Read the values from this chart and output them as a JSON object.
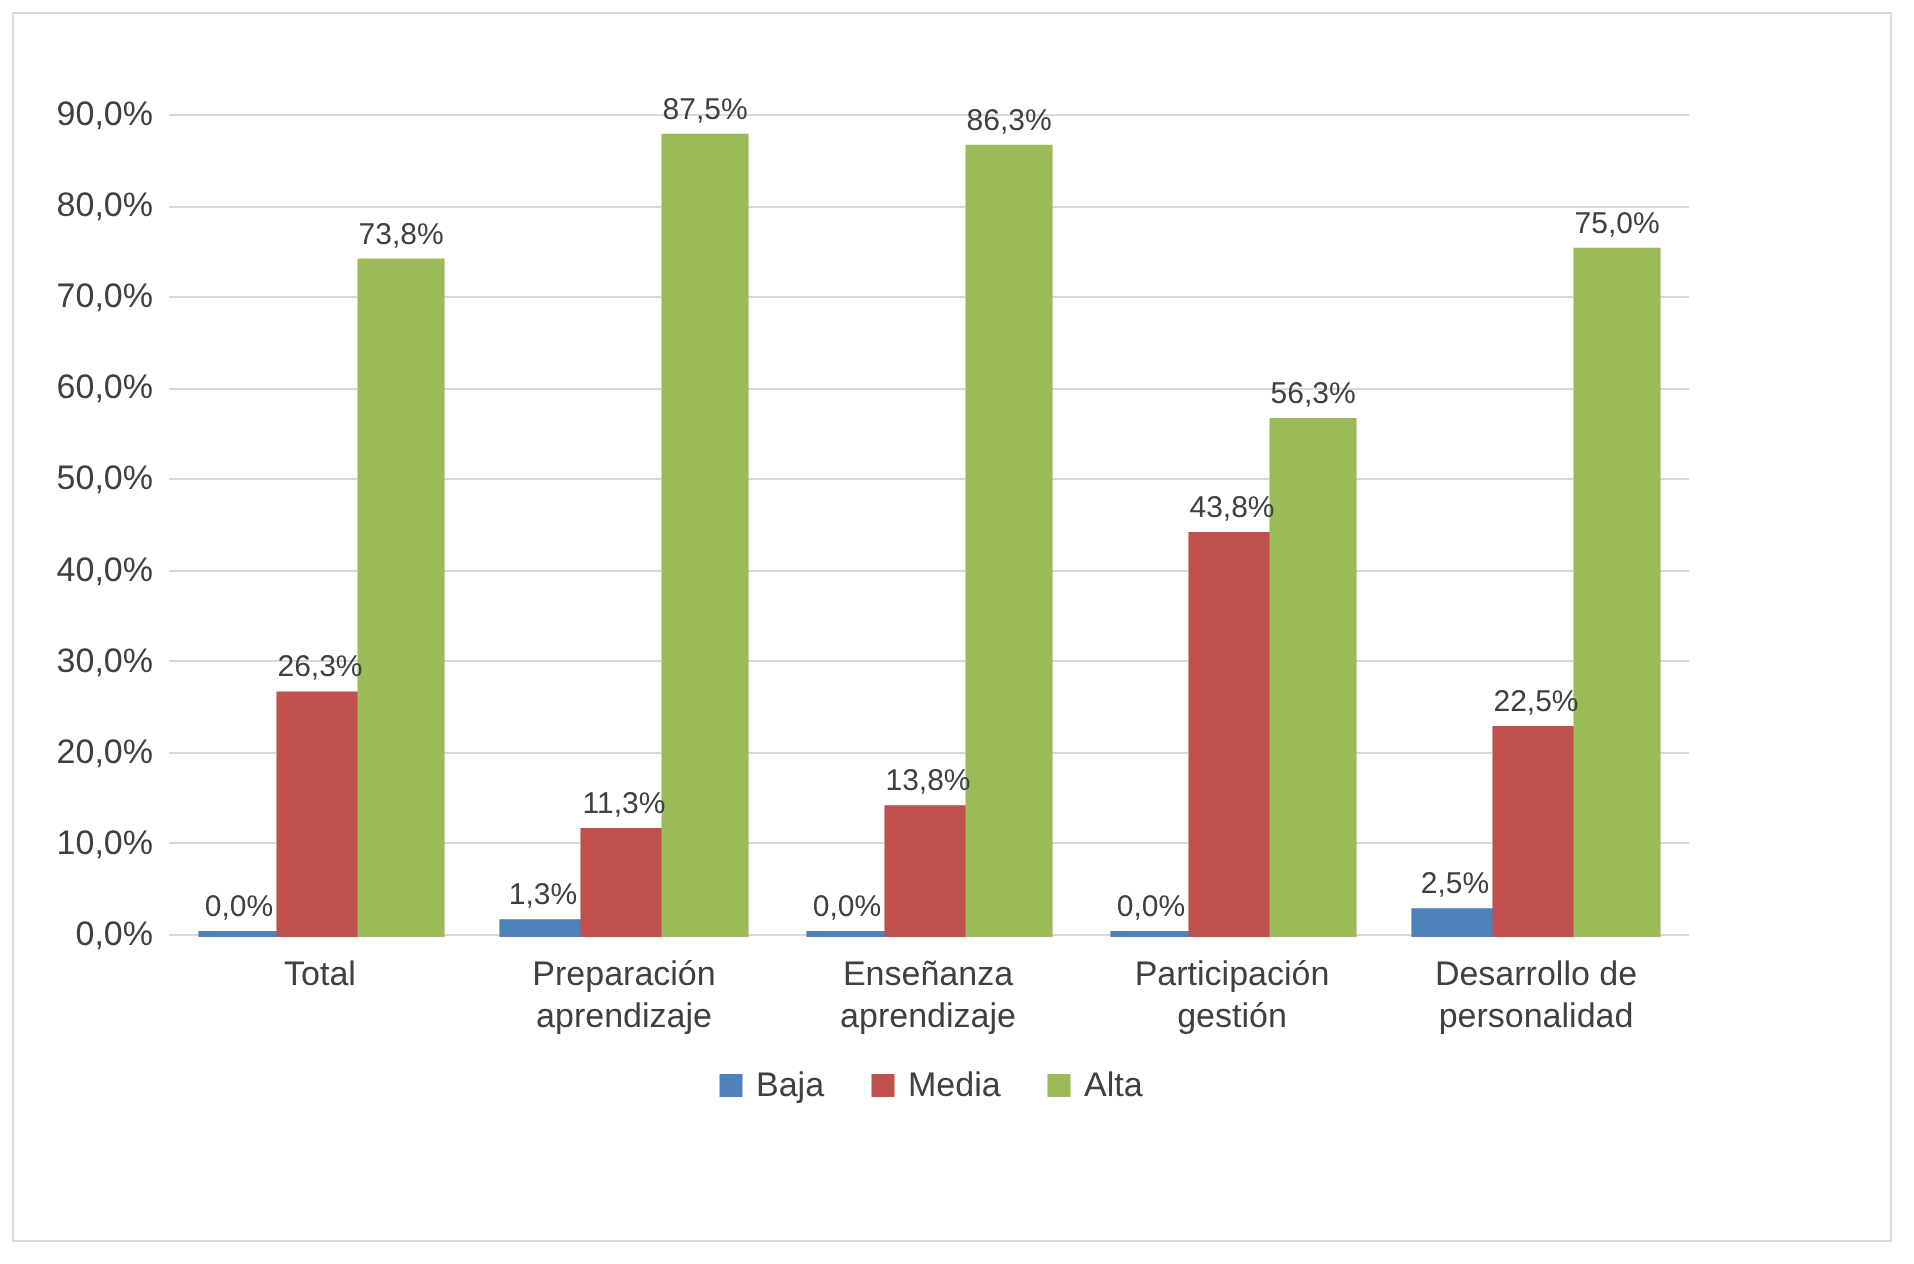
{
  "chart_data": {
    "type": "bar",
    "categories": [
      "Total",
      "Preparación aprendizaje",
      "Enseñanza aprendizaje",
      "Participación gestión",
      "Desarrollo de personalidad"
    ],
    "series": [
      {
        "name": "Baja",
        "color": "#4f81bd",
        "values": [
          0.0,
          1.3,
          0.0,
          0.0,
          2.5
        ],
        "value_labels": [
          "0,0%",
          "1,3%",
          "0,0%",
          "0,0%",
          "2,5%"
        ]
      },
      {
        "name": "Media",
        "color": "#c0504d",
        "values": [
          26.3,
          11.3,
          13.8,
          43.8,
          22.5
        ],
        "value_labels": [
          "26,3%",
          "11,3%",
          "13,8%",
          "43,8%",
          "22,5%"
        ]
      },
      {
        "name": "Alta",
        "color": "#9bbb59",
        "values": [
          73.8,
          87.5,
          86.3,
          56.3,
          75.0
        ],
        "value_labels": [
          "73,8%",
          "87,5%",
          "86,3%",
          "56,3%",
          "75,0%"
        ]
      }
    ],
    "ylim": [
      0,
      90
    ],
    "yticks": [
      {
        "value": 0,
        "label": "0,0%"
      },
      {
        "value": 10,
        "label": "10,0%"
      },
      {
        "value": 20,
        "label": "20,0%"
      },
      {
        "value": 30,
        "label": "30,0%"
      },
      {
        "value": 40,
        "label": "40,0%"
      },
      {
        "value": 50,
        "label": "50,0%"
      },
      {
        "value": 60,
        "label": "60,0%"
      },
      {
        "value": 70,
        "label": "70,0%"
      },
      {
        "value": 80,
        "label": "80,0%"
      },
      {
        "value": 90,
        "label": "90,0%"
      }
    ],
    "grid": "y",
    "legend": "bottom"
  }
}
